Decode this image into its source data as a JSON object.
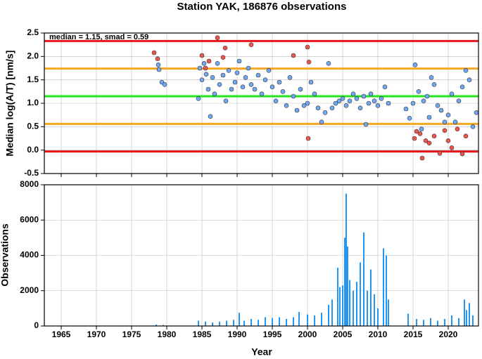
{
  "chart_data": [
    {
      "type": "scatter",
      "title": "Station YAK, 186876 observations",
      "ylabel": "Median log(A/T) [nm/s]",
      "annotation": "median = 1.15, smad = 0.59",
      "xlim": [
        1962.6,
        2024.3
      ],
      "ylim": [
        -0.5,
        2.5
      ],
      "yticks": [
        -0.5,
        {
          "value": 0,
          "label": "0.0"
        },
        0.5,
        {
          "value": 1,
          "label": "1.0"
        },
        1.5,
        {
          "value": 2,
          "label": "2.0"
        },
        2.5
      ],
      "grid": true,
      "hlines": [
        {
          "value": 2.33,
          "color": "#e8141b"
        },
        {
          "value": 1.74,
          "color": "#f5a623"
        },
        {
          "value": 1.15,
          "color": "#22e51a"
        },
        {
          "value": 0.56,
          "color": "#f5a623"
        },
        {
          "value": -0.03,
          "color": "#e8141b"
        }
      ],
      "series": [
        {
          "color": "#6fa8f5",
          "x": [
            1978.8,
            1978.9,
            1979.3,
            1979.7,
            1984.5,
            1984.7,
            1985,
            1985.3,
            1985.6,
            1985.9,
            1986.2,
            1986.5,
            1986.8,
            1987.2,
            1987.5,
            1988,
            1988.4,
            1988.8,
            1989.2,
            1989.7,
            1990,
            1990.3,
            1990.8,
            1991.2,
            1991.6,
            1992,
            1992.5,
            1993,
            1993.5,
            1994,
            1994.5,
            1995,
            1995.5,
            1996,
            1996.5,
            1997,
            1997.5,
            1998,
            1998.5,
            1999,
            1999.5,
            2000,
            2000.5,
            2001,
            2001.5,
            2002,
            2002.5,
            2003,
            2003.5,
            2004,
            2004.5,
            2005,
            2005.5,
            2006,
            2006.5,
            2007,
            2007.5,
            2008,
            2008.3,
            2008.7,
            2009,
            2009.5,
            2010,
            2010.5,
            2011,
            2011.5,
            2014,
            2014.5,
            2015,
            2015.3,
            2015.8,
            2016.2,
            2016.5,
            2017,
            2017.3,
            2017.6,
            2018,
            2018.5,
            2019,
            2019.5,
            2020,
            2020.5,
            2021,
            2021.5,
            2022,
            2022.5,
            2023,
            2023.5,
            2024
          ],
          "values": [
            1.82,
            1.72,
            1.45,
            1.4,
            1.1,
            1.75,
            1.5,
            1.85,
            1.62,
            1.3,
            0.72,
            1.55,
            1.2,
            1.85,
            1.4,
            1.6,
            1.05,
            1.7,
            1.3,
            1.45,
            1.65,
            1.9,
            1.35,
            1.55,
            1.75,
            1.4,
            1.3,
            1.6,
            1.2,
            1.5,
            1.7,
            1.35,
            1.05,
            1.45,
            1.25,
            0.95,
            1.55,
            1.15,
            0.85,
            1.3,
            0.95,
            1.0,
            1.45,
            1.2,
            0.9,
            0.6,
            0.8,
            1.85,
            0.9,
            1.0,
            1.05,
            1.1,
            0.95,
            1.05,
            1.2,
            1.1,
            0.9,
            1.15,
            0.55,
            1.0,
            1.2,
            1.05,
            0.95,
            1.1,
            1.35,
            1.0,
            0.88,
            0.68,
            1.0,
            1.82,
            1.25,
            0.45,
            1.05,
            1.15,
            0.7,
            1.55,
            1.4,
            0.95,
            0.85,
            0.6,
            0.75,
            1.2,
            0.6,
            1.05,
            1.35,
            1.7,
            1.5,
            0.5,
            0.8
          ]
        },
        {
          "color": "#f0544a",
          "x": [
            1978.2,
            1978.7,
            1985,
            1985.5,
            1986,
            1987.2,
            1988,
            1988.3,
            1992,
            1998,
            2000,
            2000.2,
            2000.1,
            2015.2,
            2015.5,
            2016,
            2016.3,
            2016.8,
            2017.3,
            2018,
            2018.8,
            2019.5,
            2020,
            2020.5,
            2021.3,
            2022,
            2022.5
          ],
          "values": [
            2.08,
            1.95,
            2.02,
            1.75,
            1.9,
            2.4,
            1.98,
            2.18,
            2.25,
            2.02,
            2.2,
            1.88,
            0.25,
            0.25,
            0.4,
            0.35,
            -0.17,
            0.2,
            0.15,
            0.3,
            -0.07,
            0.42,
            0.2,
            0.05,
            0.45,
            -0.08,
            0.3
          ]
        }
      ]
    },
    {
      "type": "bar",
      "xlabel": "Year",
      "ylabel": "Observations",
      "color": "#2196f3",
      "xlim": [
        1962.6,
        2024.3
      ],
      "ylim": [
        0,
        8000
      ],
      "xticks": [
        1965,
        1970,
        1975,
        1980,
        1985,
        1990,
        1995,
        2000,
        2005,
        2010,
        2015,
        2020
      ],
      "yticks": [
        0,
        2000,
        4000,
        6000,
        8000
      ],
      "grid": true,
      "x": [
        1978.5,
        1979.5,
        1984.5,
        1985.5,
        1986.5,
        1987.5,
        1988.5,
        1989.5,
        1990.3,
        1991,
        1992,
        1993,
        1994,
        1995,
        1996,
        1997,
        1998,
        1998.8,
        2000,
        2001,
        2002,
        2003,
        2003.5,
        2004.3,
        2004.6,
        2005,
        2005.3,
        2005.5,
        2005.7,
        2006,
        2006.5,
        2007,
        2007.5,
        2008,
        2008.5,
        2009,
        2009.5,
        2010,
        2010.8,
        2011.2,
        2011.5,
        2014.3,
        2015.5,
        2016.5,
        2017.5,
        2018.5,
        2019.5,
        2020.5,
        2021.5,
        2022.3,
        2022.6,
        2023,
        2023.5
      ],
      "values": [
        80,
        60,
        300,
        250,
        200,
        250,
        300,
        350,
        750,
        300,
        400,
        350,
        500,
        450,
        500,
        400,
        500,
        800,
        650,
        600,
        750,
        1200,
        1500,
        3300,
        2200,
        2300,
        5000,
        7500,
        4500,
        2600,
        2000,
        2500,
        3600,
        5300,
        2000,
        3200,
        1800,
        1000,
        4400,
        4000,
        1500,
        700,
        400,
        350,
        450,
        300,
        400,
        600,
        450,
        1500,
        900,
        1300,
        600
      ]
    }
  ]
}
